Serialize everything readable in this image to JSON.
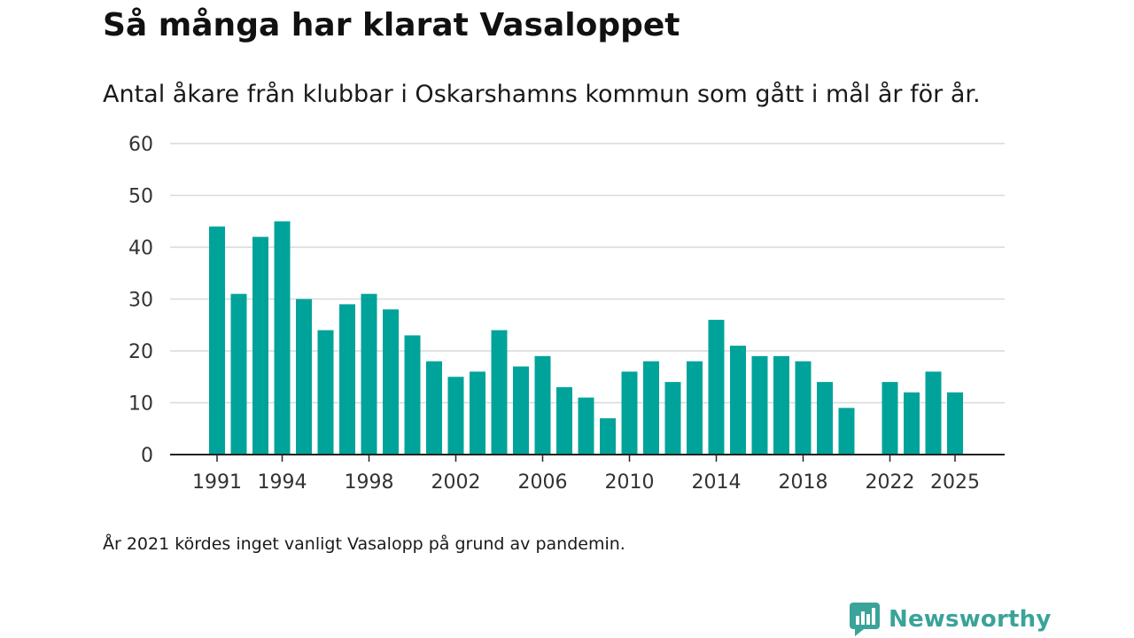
{
  "header": {
    "title": "Så många har klarat Vasaloppet",
    "subtitle": "Antal åkare från klubbar i Oskarshamns kommun som gått i mål år för år."
  },
  "footnote": "År 2021 kördes inget vanligt Vasalopp på grund av pandemin.",
  "brand": {
    "name": "Newsworthy",
    "icon": "newsworthy-logo-icon",
    "color": "#3aa39a"
  },
  "colors": {
    "bar": "#00a39a",
    "grid": "#d9d9d9",
    "axis": "#222222"
  },
  "chart_data": {
    "type": "bar",
    "title": "Så många har klarat Vasaloppet",
    "xlabel": "",
    "ylabel": "",
    "categories": [
      1991,
      1992,
      1993,
      1994,
      1995,
      1996,
      1997,
      1998,
      1999,
      2000,
      2001,
      2002,
      2003,
      2004,
      2005,
      2006,
      2007,
      2008,
      2009,
      2010,
      2011,
      2012,
      2013,
      2014,
      2015,
      2016,
      2017,
      2018,
      2019,
      2020,
      2021,
      2022,
      2023,
      2024,
      2025
    ],
    "values": [
      44,
      31,
      42,
      45,
      30,
      24,
      29,
      31,
      28,
      23,
      18,
      15,
      16,
      24,
      17,
      19,
      13,
      11,
      7,
      16,
      18,
      14,
      18,
      26,
      21,
      19,
      19,
      18,
      14,
      9,
      null,
      14,
      12,
      16,
      12
    ],
    "ylim": [
      0,
      60
    ],
    "yticks": [
      0,
      10,
      20,
      30,
      40,
      50,
      60
    ],
    "xticks": [
      1991,
      1994,
      1998,
      2002,
      2006,
      2010,
      2014,
      2018,
      2022,
      2025
    ],
    "grid": true,
    "legend": "none"
  }
}
